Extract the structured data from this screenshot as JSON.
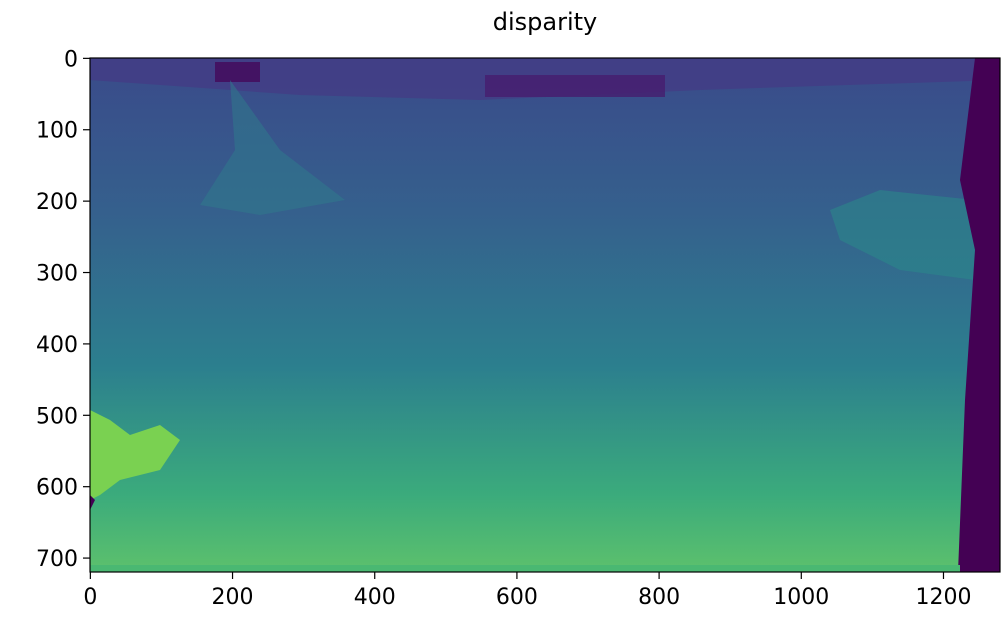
{
  "chart_data": {
    "type": "image",
    "title": "disparity",
    "xlim": [
      -0.5,
      1279.5
    ],
    "ylim": [
      719.5,
      -0.5
    ],
    "xticks": [
      0,
      200,
      400,
      600,
      800,
      1000,
      1200
    ],
    "yticks": [
      0,
      100,
      200,
      300,
      400,
      500,
      600,
      700
    ],
    "colormap": "viridis"
  }
}
